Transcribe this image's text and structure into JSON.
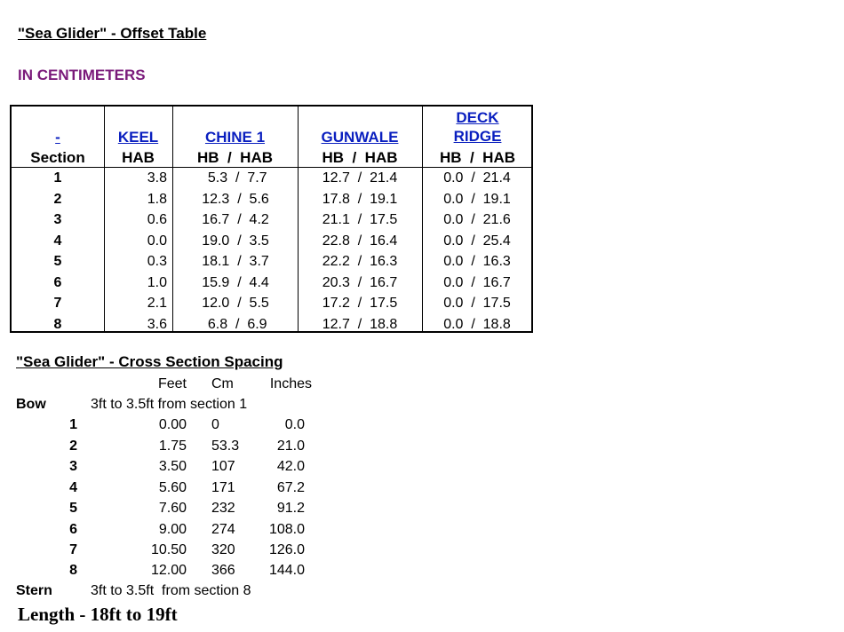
{
  "title": "\"Sea Glider\"  -   Offset Table",
  "subtitle": "IN CENTIMETERS",
  "offset_table": {
    "headers": {
      "section_link": "-",
      "section": "Section",
      "keel": "KEEL",
      "keel_sub": "HAB",
      "chine": "CHINE 1",
      "chine_sub": "HB  /  HAB",
      "gunwale": "GUNWALE",
      "gunwale_sub": "HB  /  HAB",
      "deck_1": "DECK",
      "deck_2": "RIDGE",
      "deck_sub": "HB  /  HAB"
    },
    "rows": [
      {
        "section": "1",
        "keel": "3.8",
        "chine": " 5.3  /  7.7",
        "gunwale": "12.7  /  21.4",
        "deck": "0.0  /  21.4"
      },
      {
        "section": "2",
        "keel": "1.8",
        "chine": "12.3  /  5.6",
        "gunwale": "17.8  /  19.1",
        "deck": "0.0  /  19.1"
      },
      {
        "section": "3",
        "keel": "0.6",
        "chine": "16.7  /  4.2",
        "gunwale": "21.1  /  17.5",
        "deck": "0.0  /  21.6"
      },
      {
        "section": "4",
        "keel": "0.0",
        "chine": "19.0  /  3.5",
        "gunwale": "22.8  /  16.4",
        "deck": "0.0  /  25.4"
      },
      {
        "section": "5",
        "keel": "0.3",
        "chine": "18.1  /  3.7",
        "gunwale": "22.2  /  16.3",
        "deck": "0.0  /  16.3"
      },
      {
        "section": "6",
        "keel": "1.0",
        "chine": "15.9  /  4.4",
        "gunwale": "20.3  /  16.7",
        "deck": "0.0  /  16.7"
      },
      {
        "section": "7",
        "keel": "2.1",
        "chine": "12.0  /  5.5",
        "gunwale": "17.2  /  17.5",
        "deck": "0.0  /  17.5"
      },
      {
        "section": "8",
        "keel": "3.6",
        "chine": " 6.8  /  6.9",
        "gunwale": "12.7  /  18.8",
        "deck": "0.0  /  18.8"
      }
    ]
  },
  "spacing": {
    "title": "\"Sea Glider\"  -   Cross Section Spacing",
    "col_feet": "Feet",
    "col_cm": "Cm",
    "col_inches": "Inches",
    "bow_label": "Bow",
    "bow_note": "3ft to 3.5ft from section 1",
    "rows": [
      {
        "section": "1",
        "feet": "0.00",
        "cm": "0",
        "inches": "0.0"
      },
      {
        "section": "2",
        "feet": "1.75",
        "cm": "53.3",
        "inches": "21.0"
      },
      {
        "section": "3",
        "feet": "3.50",
        "cm": "107",
        "inches": "42.0"
      },
      {
        "section": "4",
        "feet": "5.60",
        "cm": "171",
        "inches": "67.2"
      },
      {
        "section": "5",
        "feet": "7.60",
        "cm": "232",
        "inches": "91.2"
      },
      {
        "section": "6",
        "feet": "9.00",
        "cm": "274",
        "inches": "108.0"
      },
      {
        "section": "7",
        "feet": "10.50",
        "cm": "320",
        "inches": "126.0"
      },
      {
        "section": "8",
        "feet": "12.00",
        "cm": "366",
        "inches": "144.0"
      }
    ],
    "stern_label": "Stern",
    "stern_note": "3ft to 3.5ft  from section 8"
  },
  "length": "Length - 18ft to 19ft",
  "colors": {
    "link": "#0a1fbf",
    "subtitle": "#7a1a7a"
  }
}
